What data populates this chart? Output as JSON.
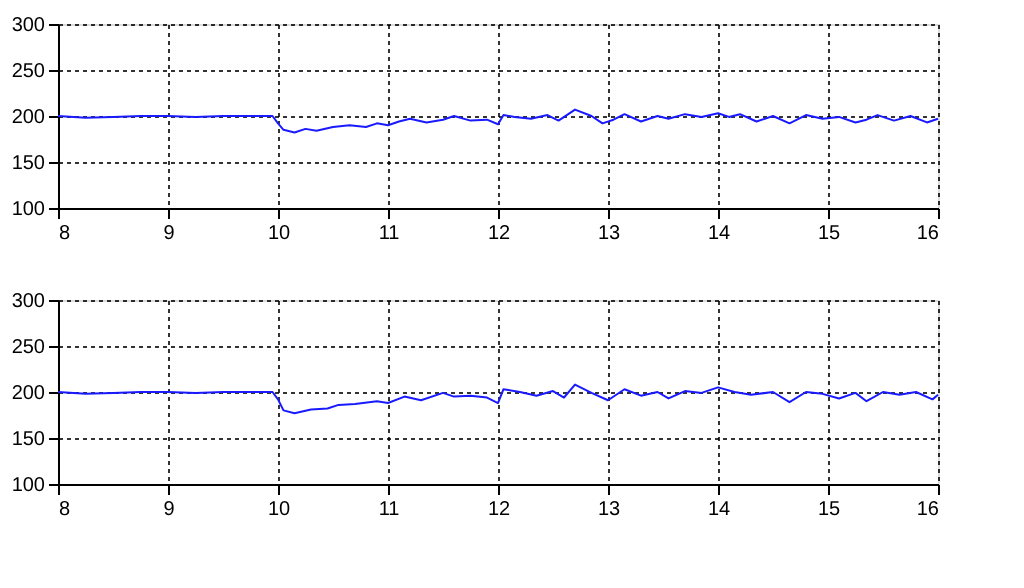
{
  "chart_data": [
    {
      "type": "line",
      "xlim": [
        8,
        16
      ],
      "xticks": [
        8,
        9,
        10,
        11,
        12,
        13,
        14,
        15,
        16
      ],
      "ylim": [
        100,
        300
      ],
      "yticks": [
        100,
        150,
        200,
        250,
        300
      ],
      "grid": true,
      "line_style": "solid",
      "series": [
        {
          "color": "#1a1aff",
          "x": [
            8,
            8.25,
            8.5,
            8.75,
            9,
            9.25,
            9.5,
            9.75,
            9.95,
            10,
            10.05,
            10.15,
            10.25,
            10.35,
            10.5,
            10.65,
            10.8,
            10.9,
            11,
            11.1,
            11.2,
            11.35,
            11.5,
            11.6,
            11.75,
            11.9,
            12,
            12.05,
            12.15,
            12.3,
            12.45,
            12.55,
            12.7,
            12.85,
            12.95,
            13.05,
            13.15,
            13.3,
            13.45,
            13.55,
            13.7,
            13.85,
            14,
            14.1,
            14.2,
            14.35,
            14.5,
            14.65,
            14.8,
            14.95,
            15.1,
            15.25,
            15.35,
            15.45,
            15.6,
            15.75,
            15.9,
            16
          ],
          "values": [
            200,
            198,
            199,
            200,
            200,
            199,
            200,
            200,
            200,
            192,
            185,
            182,
            186,
            184,
            188,
            190,
            188,
            192,
            190,
            194,
            197,
            193,
            196,
            200,
            195,
            196,
            191,
            201,
            199,
            197,
            201,
            195,
            207,
            200,
            192,
            196,
            202,
            194,
            200,
            197,
            202,
            199,
            203,
            199,
            202,
            194,
            200,
            192,
            201,
            197,
            199,
            193,
            196,
            201,
            195,
            200,
            193,
            197
          ]
        }
      ]
    },
    {
      "type": "line",
      "xlim": [
        8,
        16
      ],
      "xticks": [
        8,
        9,
        10,
        11,
        12,
        13,
        14,
        15,
        16
      ],
      "ylim": [
        100,
        300
      ],
      "yticks": [
        100,
        150,
        200,
        250,
        300
      ],
      "grid": true,
      "line_style": "solid",
      "series": [
        {
          "color": "#1a1aff",
          "x": [
            8,
            8.25,
            8.5,
            8.75,
            9,
            9.25,
            9.5,
            9.75,
            9.95,
            10,
            10.05,
            10.15,
            10.3,
            10.45,
            10.55,
            10.7,
            10.9,
            11,
            11.15,
            11.3,
            11.5,
            11.6,
            11.75,
            11.9,
            12,
            12.05,
            12.2,
            12.35,
            12.5,
            12.6,
            12.7,
            12.85,
            13,
            13.15,
            13.3,
            13.45,
            13.55,
            13.7,
            13.85,
            14,
            14.15,
            14.3,
            14.5,
            14.65,
            14.8,
            14.95,
            15.1,
            15.25,
            15.35,
            15.5,
            15.65,
            15.8,
            15.95,
            16
          ],
          "values": [
            200,
            198,
            199,
            200,
            200,
            199,
            200,
            200,
            200,
            192,
            180,
            177,
            181,
            182,
            186,
            187,
            190,
            188,
            195,
            191,
            199,
            195,
            196,
            194,
            188,
            203,
            200,
            196,
            201,
            194,
            208,
            199,
            191,
            203,
            196,
            200,
            193,
            201,
            199,
            205,
            200,
            197,
            200,
            189,
            200,
            198,
            193,
            199,
            190,
            200,
            197,
            200,
            192,
            197
          ]
        }
      ]
    }
  ]
}
